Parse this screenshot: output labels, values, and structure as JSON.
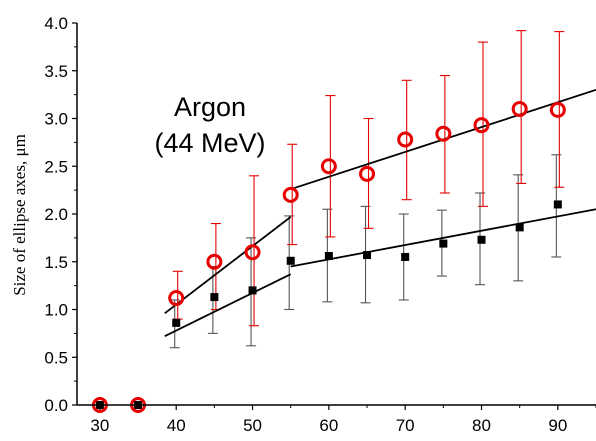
{
  "chart_data": {
    "type": "scatter",
    "title": "",
    "annotation": [
      "Argon",
      "(44 MeV)"
    ],
    "xlabel": "",
    "ylabel": "Size of ellipse axes, μm",
    "xlim": [
      27,
      95
    ],
    "ylim": [
      0,
      4
    ],
    "xticks": [
      30,
      40,
      50,
      60,
      70,
      80,
      90
    ],
    "yticks": [
      "0.0",
      "0.5",
      "1.0",
      "1.5",
      "2.0",
      "2.5",
      "3.0",
      "3.5",
      "4.0"
    ],
    "grid": false,
    "series": [
      {
        "marker": "open-circle",
        "color": "#e60000",
        "x": [
          30,
          35,
          40,
          45,
          50,
          55,
          60,
          65,
          70,
          75,
          80,
          85,
          90
        ],
        "y": [
          0.0,
          0.0,
          1.12,
          1.5,
          1.6,
          2.2,
          2.5,
          2.42,
          2.78,
          2.84,
          2.93,
          3.1,
          3.09
        ],
        "err_low": [
          0,
          0,
          0.9,
          1.0,
          0.83,
          1.68,
          1.76,
          1.85,
          2.15,
          2.22,
          2.08,
          2.32,
          2.28
        ],
        "err_high": [
          0,
          0,
          1.4,
          1.9,
          2.4,
          2.73,
          3.24,
          3.0,
          3.4,
          3.45,
          3.8,
          3.92,
          3.91
        ]
      },
      {
        "marker": "filled-square",
        "color": "#000000",
        "x": [
          30,
          35,
          40,
          45,
          50,
          55,
          60,
          65,
          70,
          75,
          80,
          85,
          90
        ],
        "y": [
          0.0,
          0.0,
          0.86,
          1.13,
          1.2,
          1.51,
          1.56,
          1.57,
          1.55,
          1.69,
          1.73,
          1.86,
          2.1
        ],
        "err_low": [
          0,
          0,
          0.6,
          0.75,
          0.62,
          1.0,
          1.08,
          1.07,
          1.1,
          1.35,
          1.26,
          1.3,
          1.55
        ],
        "err_high": [
          0,
          0,
          1.1,
          1.45,
          1.75,
          1.98,
          2.05,
          2.08,
          2.0,
          2.04,
          2.22,
          2.41,
          2.62
        ]
      }
    ],
    "fit_lines": [
      {
        "color": "#000000",
        "points": [
          [
            38.5,
            0.96
          ],
          [
            55,
            1.97
          ]
        ]
      },
      {
        "color": "#000000",
        "points": [
          [
            55,
            2.26
          ],
          [
            95,
            3.3
          ]
        ]
      },
      {
        "color": "#000000",
        "points": [
          [
            38.5,
            0.72
          ],
          [
            55,
            1.37
          ]
        ]
      },
      {
        "color": "#000000",
        "points": [
          [
            55,
            1.45
          ],
          [
            95,
            2.05
          ]
        ]
      }
    ]
  }
}
